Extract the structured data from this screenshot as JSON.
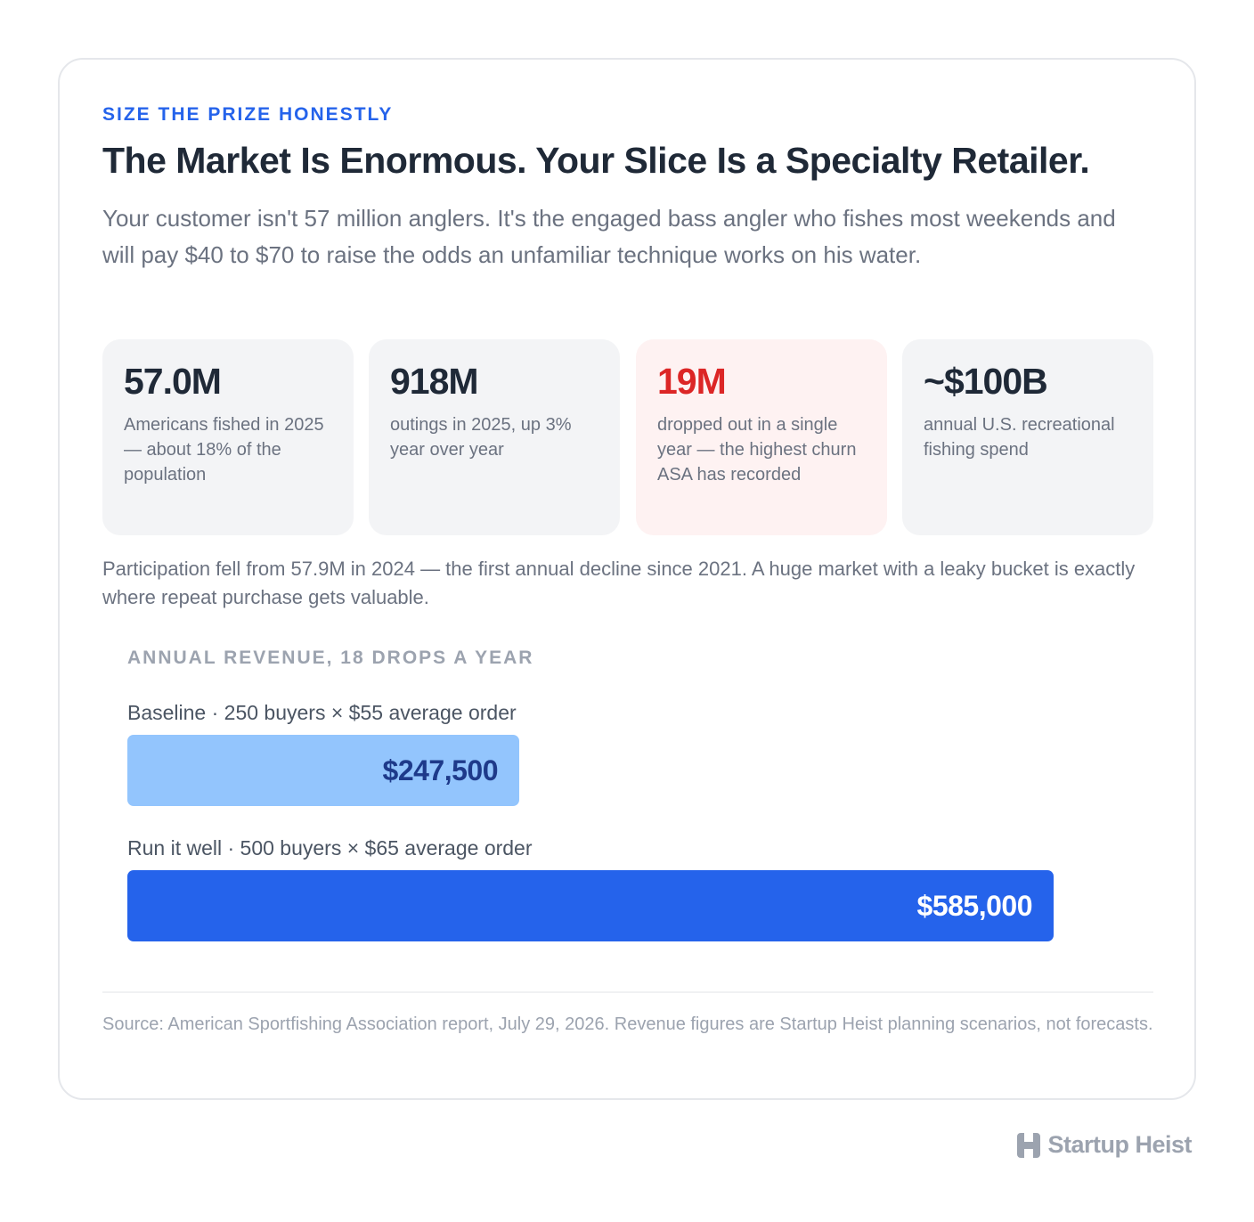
{
  "eyebrow": "SIZE THE PRIZE HONESTLY",
  "title": "The Market Is Enormous. Your Slice Is a Specialty Retailer.",
  "lede": "Your customer isn't 57 million anglers. It's the engaged bass angler who fishes most weekends and will pay $40 to $70 to raise the odds an unfamiliar technique works on his water.",
  "stats": [
    {
      "value": "57.0M",
      "label": "Americans fished in 2025 — about 18% of the population"
    },
    {
      "value": "918M",
      "label": "outings in 2025, up 3% year over year"
    },
    {
      "value": "19M",
      "label": "dropped out in a single year — the highest churn ASA has recorded"
    },
    {
      "value": "~$100B",
      "label": "annual U.S. recreational fishing spend"
    }
  ],
  "note": "Participation fell from 57.9M in 2024 — the first annual decline since 2021. A huge market with a leaky bucket is exactly where repeat purchase gets valuable.",
  "chart_data": {
    "type": "bar",
    "orientation": "horizontal",
    "title": "ANNUAL REVENUE, 18 DROPS A YEAR",
    "categories": [
      "Baseline · 250 buyers × $55 average order",
      "Run it well · 500 buyers × $65 average order"
    ],
    "values": [
      247500,
      585000
    ],
    "value_labels": [
      "$247,500",
      "$585,000"
    ],
    "colors": [
      "#93c5fd",
      "#2563eb"
    ],
    "label_colors": [
      "#1e3a8a",
      "#ffffff"
    ],
    "xlim": [
      0,
      585000
    ],
    "grid": false
  },
  "source": "Source: American Sportfishing Association report, July 29, 2026. Revenue figures are Startup Heist planning scenarios, not forecasts.",
  "brand": {
    "name": "Startup Heist",
    "color": "#9ca3af"
  }
}
